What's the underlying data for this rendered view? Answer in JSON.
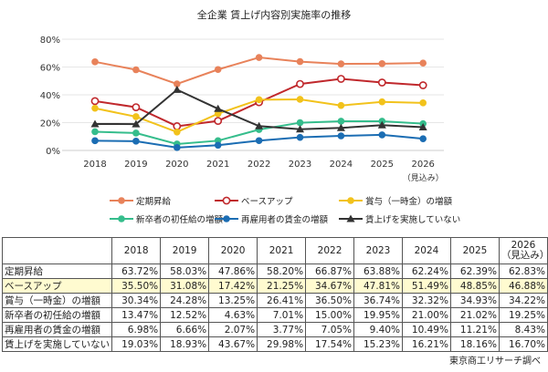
{
  "chart_data": {
    "type": "line",
    "title": "全企業 賃上げ内容別実施率の推移",
    "categories": [
      "2018",
      "2019",
      "2020",
      "2021",
      "2022",
      "2023",
      "2024",
      "2025",
      "2026"
    ],
    "category_notes": {
      "2026": "（見込み）"
    },
    "ylim": [
      0,
      80
    ],
    "yticks": [
      "0%",
      "20%",
      "40%",
      "60%",
      "80%"
    ],
    "grid": true,
    "legend_placement": "bottom",
    "series": [
      {
        "name": "定期昇給",
        "color": "#E8825A",
        "marker": "circle",
        "values": [
          63.72,
          58.03,
          47.86,
          58.2,
          66.87,
          63.88,
          62.24,
          62.39,
          62.83
        ]
      },
      {
        "name": "ベースアップ",
        "color": "#C0282C",
        "marker": "open-circle",
        "values": [
          35.5,
          31.08,
          17.42,
          21.25,
          34.67,
          47.81,
          51.49,
          48.85,
          46.88
        ]
      },
      {
        "name": "賞与（一時金）の増額",
        "color": "#F2C21B",
        "marker": "circle",
        "values": [
          30.34,
          24.28,
          13.25,
          26.41,
          36.5,
          36.74,
          32.32,
          34.93,
          34.22
        ]
      },
      {
        "name": "新卒者の初任給の増額",
        "color": "#35BD8C",
        "marker": "circle",
        "values": [
          13.47,
          12.52,
          4.63,
          7.01,
          15.0,
          19.95,
          21.0,
          21.02,
          19.25
        ]
      },
      {
        "name": "再雇用者の賃金の増額",
        "color": "#1B6DB3",
        "marker": "circle",
        "values": [
          6.98,
          6.66,
          2.07,
          3.77,
          7.05,
          9.4,
          10.49,
          11.21,
          8.43
        ]
      },
      {
        "name": "賃上げを実施していない",
        "color": "#333333",
        "marker": "triangle",
        "values": [
          19.03,
          18.93,
          43.67,
          29.98,
          17.54,
          15.23,
          16.21,
          18.16,
          16.7
        ]
      }
    ]
  },
  "table": {
    "headers": [
      "2018",
      "2019",
      "2020",
      "2021",
      "2022",
      "2023",
      "2024",
      "2025",
      "2026"
    ],
    "header_note": "（見込み）",
    "rows": [
      {
        "label": "定期昇給",
        "cells": [
          "63.72%",
          "58.03%",
          "47.86%",
          "58.20%",
          "66.87%",
          "63.88%",
          "62.24%",
          "62.39%",
          "62.83%"
        ]
      },
      {
        "label": "ベースアップ",
        "highlight": true,
        "cells": [
          "35.50%",
          "31.08%",
          "17.42%",
          "21.25%",
          "34.67%",
          "47.81%",
          "51.49%",
          "48.85%",
          "46.88%"
        ]
      },
      {
        "label": "賞与（一時金）の増額",
        "cells": [
          "30.34%",
          "24.28%",
          "13.25%",
          "26.41%",
          "36.50%",
          "36.74%",
          "32.32%",
          "34.93%",
          "34.22%"
        ]
      },
      {
        "label": "新卒者の初任給の増額",
        "cells": [
          "13.47%",
          "12.52%",
          "4.63%",
          "7.01%",
          "15.00%",
          "19.95%",
          "21.00%",
          "21.02%",
          "19.25%"
        ]
      },
      {
        "label": "再雇用者の賃金の増額",
        "cells": [
          "6.98%",
          "6.66%",
          "2.07%",
          "3.77%",
          "7.05%",
          "9.40%",
          "10.49%",
          "11.21%",
          "8.43%"
        ]
      },
      {
        "label": "賃上げを実施していない",
        "cells": [
          "19.03%",
          "18.93%",
          "43.67%",
          "29.98%",
          "17.54%",
          "15.23%",
          "16.21%",
          "18.16%",
          "16.70%"
        ]
      }
    ]
  },
  "source": "東京商工リサーチ調べ"
}
